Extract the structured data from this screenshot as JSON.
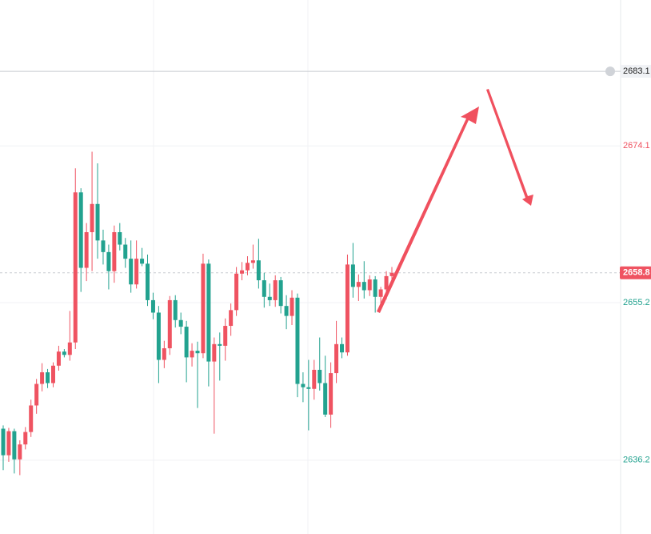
{
  "chart_data": {
    "type": "candlestick",
    "open": [
      2640.0,
      2636.8,
      2639.7,
      2636.3,
      2638.1,
      2639.6,
      2642.8,
      2645.4,
      2646.8,
      2645.5,
      2647.6,
      2649.3,
      2648.9,
      2650.4,
      2668.5,
      2659.4,
      2663.7,
      2667.1,
      2662.7,
      2661.3,
      2659.0,
      2663.7,
      2662.2,
      2660.5,
      2657.4,
      2660.5,
      2659.9,
      2655.5,
      2654.0,
      2648.3,
      2649.7,
      2655.5,
      2653.1,
      2652.3,
      2648.6,
      2649.4,
      2649.1,
      2659.9,
      2648.1,
      2650.2,
      2650.0,
      2652.4,
      2654.3,
      2658.7,
      2659.1,
      2660.0,
      2660.3,
      2657.9,
      2655.9,
      2655.5,
      2657.9,
      2654.8,
      2653.6,
      2655.8,
      2645.4,
      2645.0,
      2644.8,
      2647.1,
      2645.5,
      2641.7,
      2646.7,
      2650.2,
      2649.2,
      2659.8,
      2657.1,
      2657.7,
      2656.7,
      2658.0,
      2655.9,
      2656.8,
      2658.4
    ],
    "high": [
      2640.4,
      2640.1,
      2640.0,
      2638.6,
      2640.2,
      2643.5,
      2646.0,
      2647.9,
      2647.2,
      2648.0,
      2650.0,
      2649.6,
      2654.2,
      2671.4,
      2669.0,
      2664.8,
      2673.4,
      2672.0,
      2664.0,
      2662.2,
      2664.5,
      2664.8,
      2663.0,
      2662.7,
      2662.7,
      2661.8,
      2661.0,
      2656.4,
      2654.8,
      2650.6,
      2656.0,
      2656.1,
      2654.0,
      2653.0,
      2650.3,
      2650.5,
      2661.1,
      2660.4,
      2651.0,
      2651.6,
      2653.3,
      2655.1,
      2659.5,
      2660.1,
      2660.8,
      2662.2,
      2662.9,
      2658.8,
      2657.5,
      2658.5,
      2658.3,
      2656.1,
      2656.7,
      2656.3,
      2646.8,
      2648.3,
      2648.3,
      2651.0,
      2648.8,
      2648.0,
      2653.0,
      2651.0,
      2661.0,
      2662.4,
      2658.6,
      2660.2,
      2658.5,
      2658.4,
      2657.1,
      2659.0,
      2659.5
    ],
    "low": [
      2635.0,
      2636.0,
      2634.6,
      2634.4,
      2637.5,
      2639.0,
      2641.8,
      2644.5,
      2644.9,
      2645.0,
      2647.0,
      2648.6,
      2648.2,
      2649.6,
      2656.5,
      2657.8,
      2659.0,
      2660.5,
      2659.8,
      2656.8,
      2657.6,
      2661.5,
      2659.4,
      2656.4,
      2656.9,
      2659.6,
      2654.8,
      2653.2,
      2645.5,
      2647.3,
      2648.9,
      2652.2,
      2651.4,
      2645.6,
      2647.5,
      2642.5,
      2648.5,
      2645.1,
      2639.4,
      2645.8,
      2648.2,
      2651.2,
      2653.6,
      2657.9,
      2658.5,
      2659.3,
      2656.9,
      2654.6,
      2654.8,
      2654.7,
      2653.9,
      2652.0,
      2652.5,
      2643.8,
      2643.2,
      2639.8,
      2643.5,
      2644.6,
      2641.4,
      2640.1,
      2645.5,
      2648.5,
      2648.8,
      2655.8,
      2655.4,
      2655.7,
      2656.0,
      2654.0,
      2654.5,
      2655.6,
      2657.9
    ],
    "close": [
      2636.8,
      2639.7,
      2636.3,
      2638.1,
      2639.6,
      2642.8,
      2645.4,
      2646.8,
      2645.5,
      2647.6,
      2649.3,
      2648.9,
      2650.4,
      2668.5,
      2659.4,
      2663.7,
      2667.1,
      2662.7,
      2661.3,
      2659.0,
      2663.7,
      2662.2,
      2660.5,
      2657.4,
      2660.5,
      2659.9,
      2655.5,
      2654.0,
      2648.3,
      2649.7,
      2655.5,
      2653.1,
      2652.3,
      2648.6,
      2649.4,
      2649.1,
      2659.9,
      2648.1,
      2650.2,
      2650.0,
      2652.4,
      2654.3,
      2658.7,
      2659.1,
      2660.0,
      2660.3,
      2657.9,
      2655.9,
      2655.5,
      2657.9,
      2654.8,
      2653.6,
      2655.8,
      2645.4,
      2645.0,
      2644.8,
      2647.1,
      2645.5,
      2641.7,
      2646.7,
      2650.2,
      2649.2,
      2659.8,
      2657.1,
      2657.7,
      2656.7,
      2658.0,
      2655.9,
      2656.8,
      2658.4,
      2658.8
    ],
    "up_color": "#ef5361",
    "down_color": "#22a28f",
    "ylim": [
      2627.3,
      2691.7
    ],
    "yticks": [
      2636.2,
      2655.2,
      2674.1
    ],
    "ytick_colors": [
      "#22a28f",
      "#22a28f",
      "#ef5361"
    ],
    "alert_price": 2683.1,
    "last_price": 2658.8,
    "grid": true
  }
}
